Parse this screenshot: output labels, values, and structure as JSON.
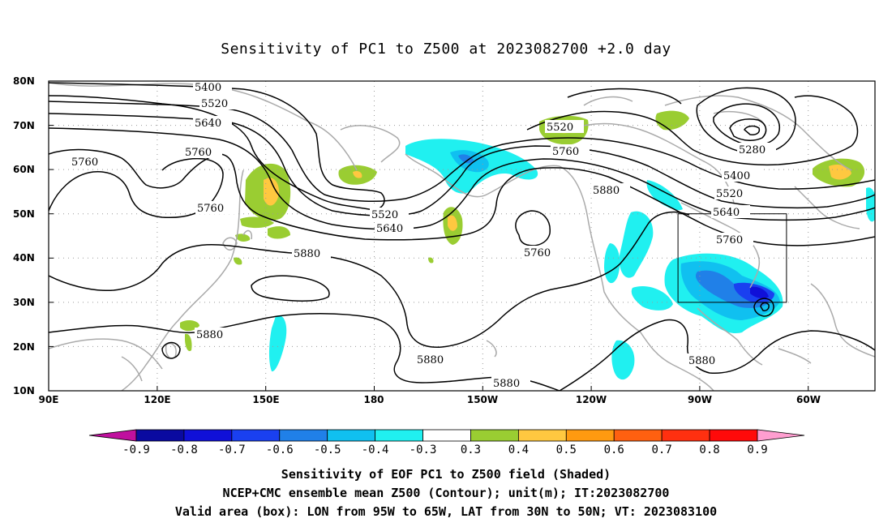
{
  "title": "Sensitivity of PC1 to Z500 at 2023082700 +2.0 day",
  "map": {
    "lat_labels": [
      "80N",
      "70N",
      "60N",
      "50N",
      "40N",
      "30N",
      "20N",
      "10N"
    ],
    "lon_labels": [
      "90E",
      "120E",
      "150E",
      "180",
      "150W",
      "120W",
      "90W",
      "60W"
    ],
    "contour_levels": [
      "5280",
      "5400",
      "5520",
      "5640",
      "5760",
      "5880"
    ],
    "box": {
      "lon_from": "95W",
      "lon_to": "65W",
      "lat_from": "30N",
      "lat_to": "50N"
    }
  },
  "colorbar": {
    "labels": [
      "-0.9",
      "-0.8",
      "-0.7",
      "-0.6",
      "-0.5",
      "-0.4",
      "-0.3",
      "0.3",
      "0.4",
      "0.5",
      "0.6",
      "0.7",
      "0.8",
      "0.9"
    ],
    "colors": [
      "#c0109e",
      "#0a0aa0",
      "#1010d8",
      "#1a40f0",
      "#2080e8",
      "#10c0f0",
      "#20f0f0",
      "#ffffff",
      "#9acd32",
      "#ffc840",
      "#ff9a10",
      "#ff6010",
      "#ff3010",
      "#ff0a0a",
      "#ff9ed0"
    ]
  },
  "captions": {
    "line1": "Sensitivity of EOF PC1 to Z500 field (Shaded)",
    "line2": "NCEP+CMC ensemble mean Z500 (Contour); unit(m); IT:2023082700",
    "line3": "Valid area (box): LON from 95W to 65W, LAT from 30N to 50N; VT: 2023083100"
  }
}
